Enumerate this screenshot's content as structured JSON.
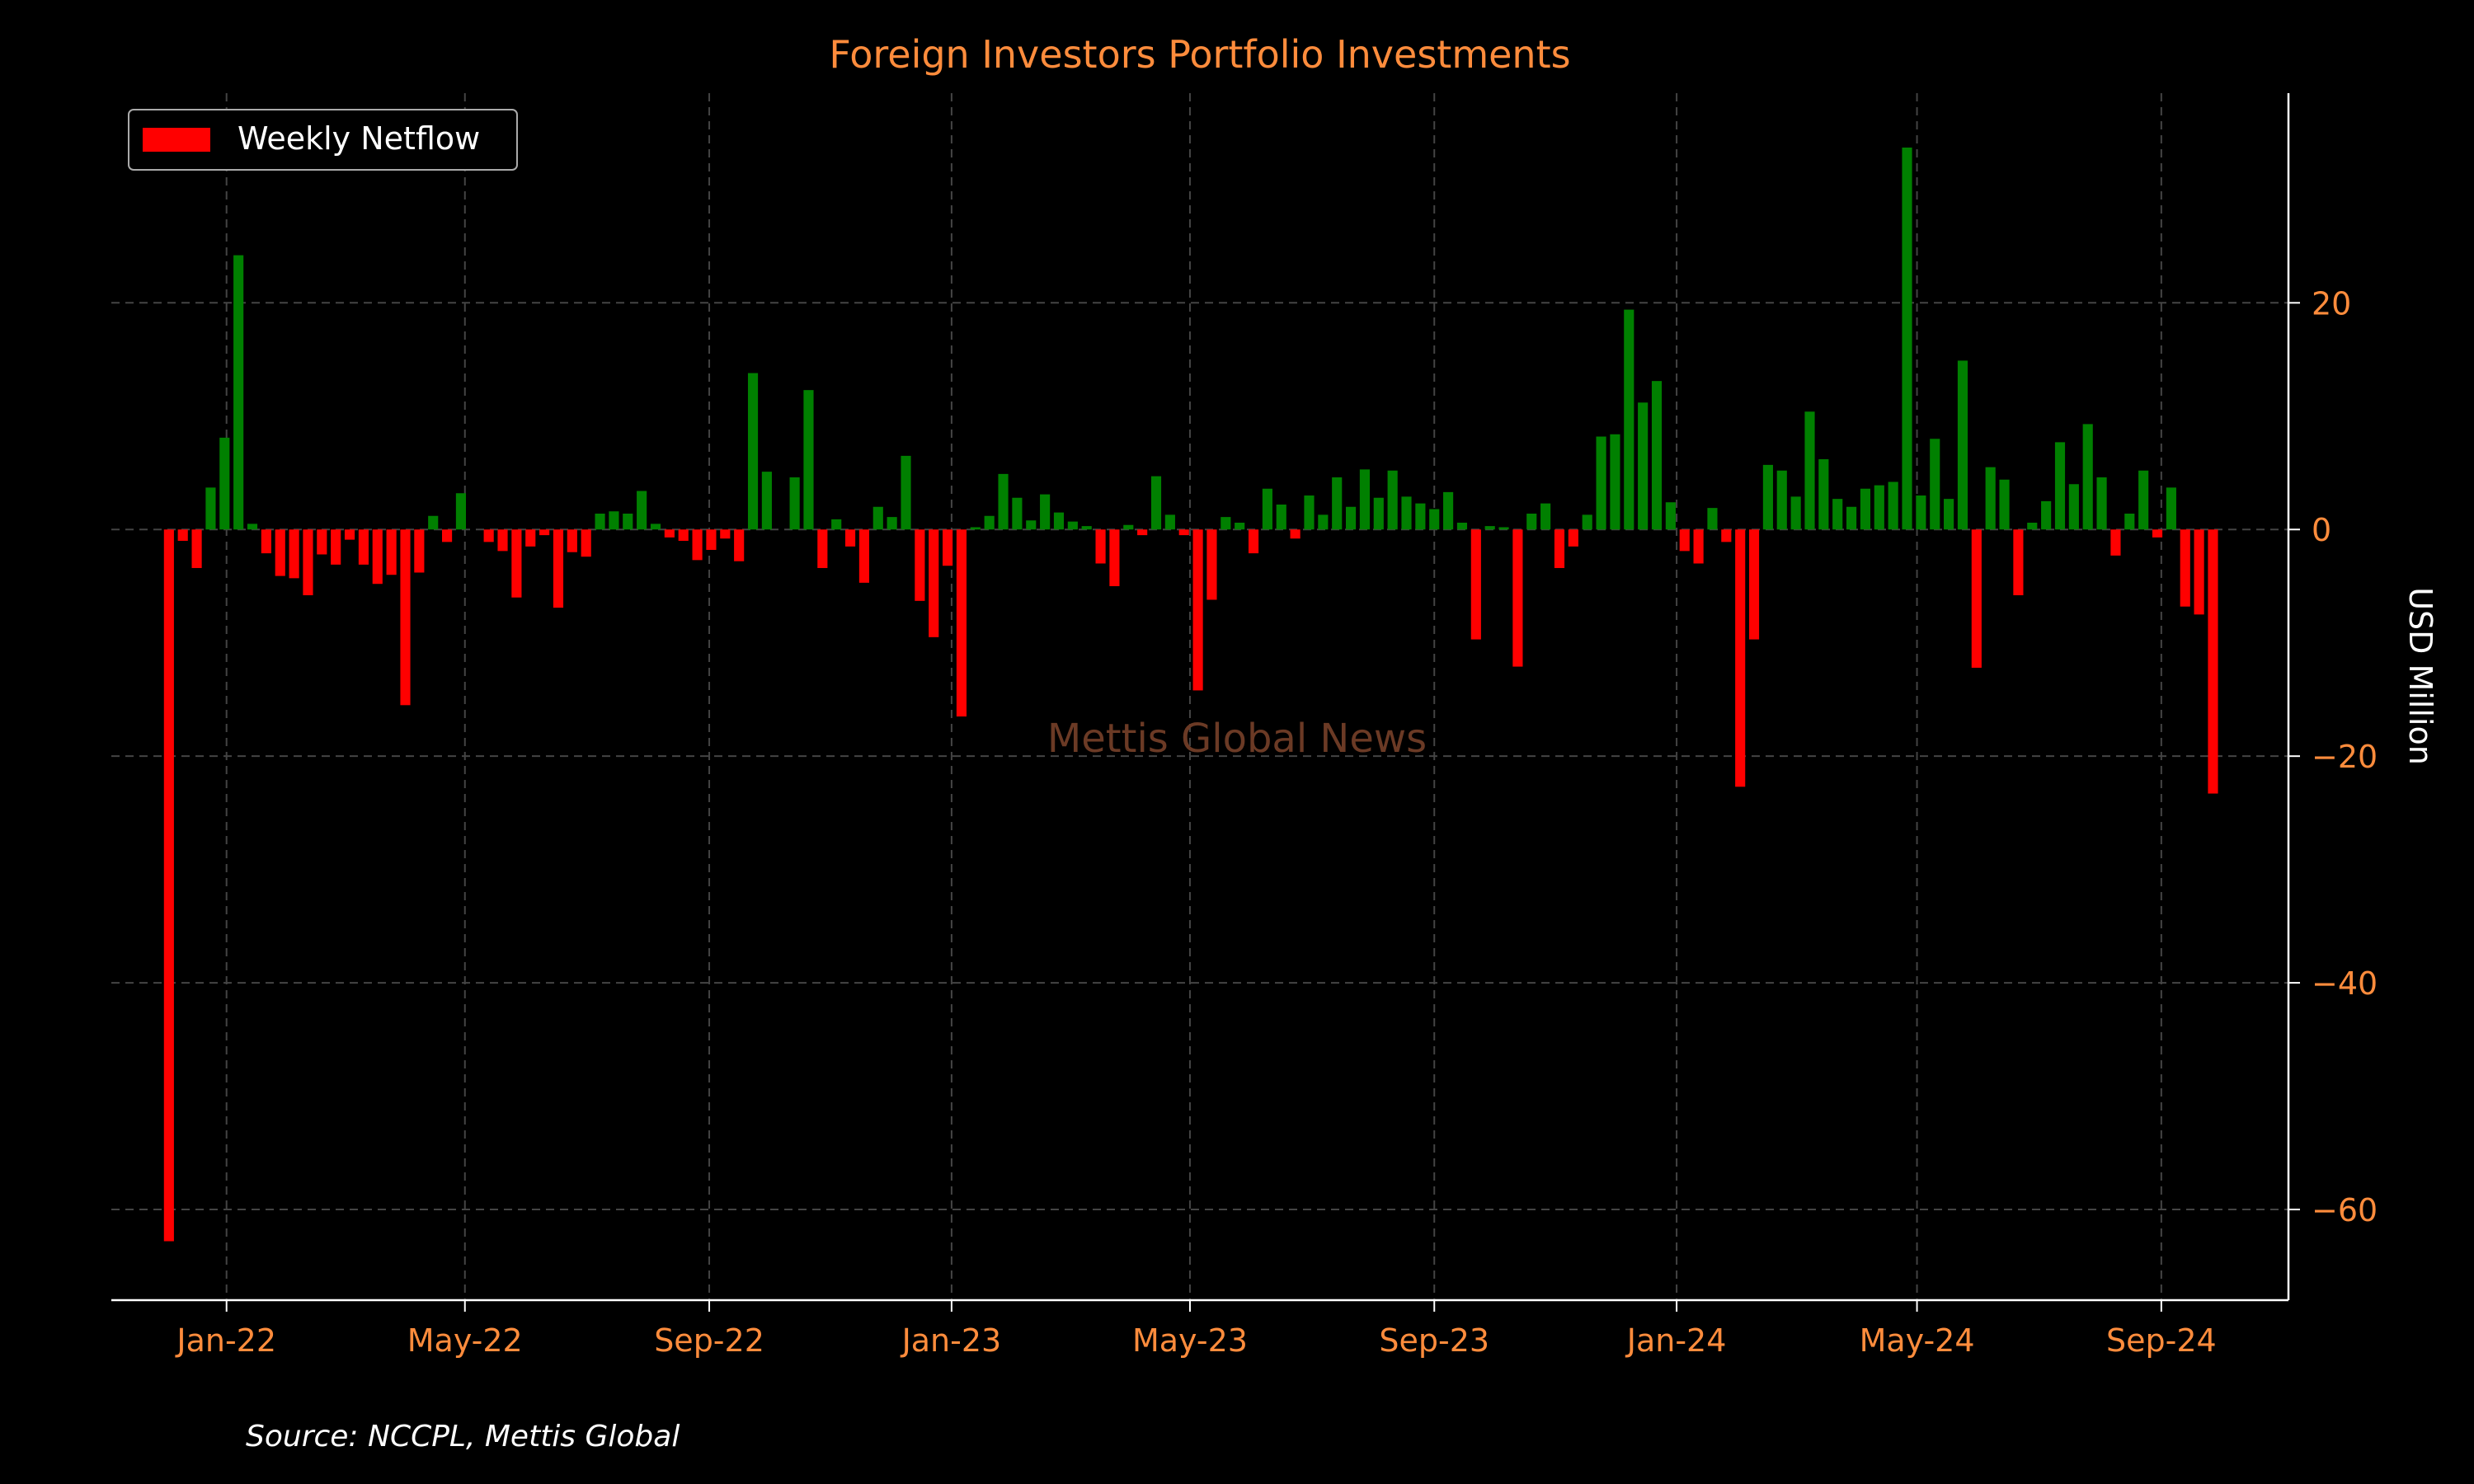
{
  "chart_data": {
    "type": "bar",
    "title": "Foreign Investors Portfolio Investments",
    "ylabel": "USD Million",
    "xlabel": "",
    "ylim": [
      -68,
      38.5
    ],
    "x_range": [
      "2021-11-04",
      "2024-11-04"
    ],
    "x_ticks": [
      {
        "date": "2022-01-01",
        "label": "Jan-22"
      },
      {
        "date": "2022-05-01",
        "label": "May-22"
      },
      {
        "date": "2022-09-01",
        "label": "Sep-22"
      },
      {
        "date": "2023-01-01",
        "label": "Jan-23"
      },
      {
        "date": "2023-05-01",
        "label": "May-23"
      },
      {
        "date": "2023-09-01",
        "label": "Sep-23"
      },
      {
        "date": "2024-01-01",
        "label": "Jan-24"
      },
      {
        "date": "2024-05-01",
        "label": "May-24"
      },
      {
        "date": "2024-09-01",
        "label": "Sep-24"
      }
    ],
    "y_ticks": [
      20,
      0,
      -20,
      -40,
      -60
    ],
    "grid": true,
    "legend": {
      "position": "top-left",
      "label": "Weekly Netflow"
    },
    "colors": {
      "positive": "#008000",
      "negative": "#ff0000",
      "title": "#ff8c3c",
      "tick": "#ff8c3c",
      "grid": "#444444",
      "axis": "#ffffff",
      "watermark": "#6b3a25"
    },
    "watermark": "Mettis Global News",
    "source": "Source: NCCPL, Mettis Global",
    "series": [
      {
        "start_date": "2021-12-03",
        "interval_days": 7,
        "values": [
          -62.8,
          -1.0,
          -3.4,
          3.7,
          8.1,
          24.2,
          0.5,
          -2.1,
          -4.1,
          -4.3,
          -5.8,
          -2.2,
          -3.1,
          -0.9,
          -3.1,
          -4.8,
          -4.0,
          -15.5,
          -3.8,
          1.2,
          -1.1,
          3.2,
          0,
          -1.1,
          -1.9,
          -6.0,
          -1.5,
          -0.5,
          -6.9,
          -2.0,
          -2.4,
          1.4,
          1.6,
          1.4,
          3.4,
          0.5,
          -0.7,
          -1.0,
          -2.7,
          -1.8,
          -0.8,
          -2.8,
          13.8,
          5.1,
          0,
          4.6,
          12.3,
          -3.4,
          0.9,
          -1.5,
          -4.7,
          2.0,
          1.1,
          6.5,
          -6.3,
          -9.5,
          -3.2,
          -16.5,
          0.2,
          1.2,
          4.9,
          2.8,
          0.8,
          3.1,
          1.5,
          0.7,
          0.3,
          -3.0,
          -5.0,
          0.4,
          -0.5,
          4.7,
          1.3,
          -0.5,
          -14.2,
          -6.2,
          1.1,
          0.6,
          -2.1,
          3.6,
          2.2,
          -0.8,
          3.0,
          1.3,
          4.6,
          2.0,
          5.3,
          2.8,
          5.2,
          2.9,
          2.3,
          1.8,
          3.3,
          0.6,
          -9.7,
          0.3,
          0.2,
          -12.1,
          1.4,
          2.3,
          -3.4,
          -1.5,
          1.3,
          8.2,
          8.4,
          19.4,
          11.2,
          13.1,
          2.4,
          -1.9,
          -3.0,
          1.9,
          -1.1,
          -22.7,
          -9.7,
          5.7,
          5.2,
          2.9,
          10.4,
          6.2,
          2.7,
          2.0,
          3.6,
          3.9,
          4.2,
          33.7,
          3.0,
          8.0,
          2.7,
          14.9,
          -12.2,
          5.5,
          4.4,
          -5.8,
          0.6,
          2.5,
          7.7,
          4.0,
          9.3,
          4.6,
          -2.3,
          1.4,
          5.2,
          -0.7,
          3.7,
          -6.8,
          -7.5,
          -23.3
        ]
      }
    ]
  }
}
